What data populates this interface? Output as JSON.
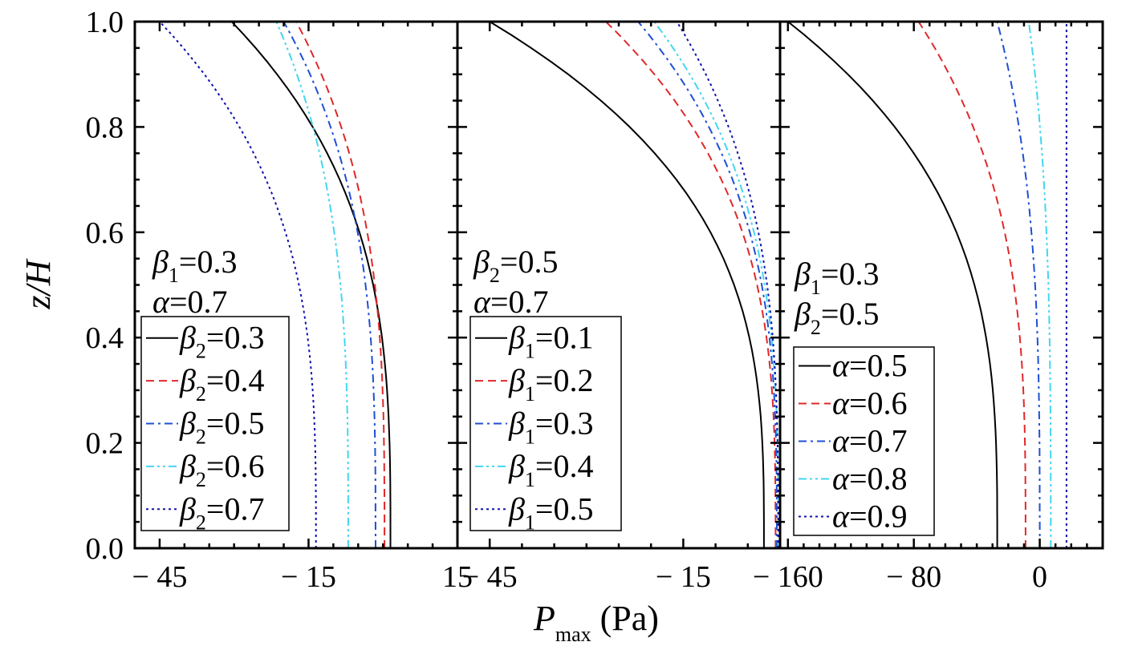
{
  "figure": {
    "ylabel_main": "z",
    "ylabel_rest": "/H",
    "xlabel_symbol": "P",
    "xlabel_sub": "max",
    "xlabel_unit": " (Pa)",
    "colors": [
      "#000000",
      "#e0282a",
      "#1f4fd6",
      "#44d6f0",
      "#1010b0"
    ],
    "dash_styles": [
      "solid",
      "dash",
      "dash-dot",
      "dash-dot-dot",
      "dot"
    ]
  },
  "chart_data": [
    {
      "type": "line",
      "orientation": "y-vs-x",
      "xlim": [
        -50,
        15
      ],
      "ylim": [
        0.0,
        1.0
      ],
      "xticks": [
        {
          "v": -45,
          "label": "− 45"
        },
        {
          "v": -15,
          "label": "− 15"
        },
        {
          "v": 15,
          "label": "15"
        }
      ],
      "yticks": [
        {
          "v": 0.0,
          "label": "0.0"
        },
        {
          "v": 0.2,
          "label": "0.2"
        },
        {
          "v": 0.4,
          "label": "0.4"
        },
        {
          "v": 0.6,
          "label": "0.6"
        },
        {
          "v": 0.8,
          "label": "0.8"
        },
        {
          "v": 1.0,
          "label": "1.0"
        }
      ],
      "annotation": [
        {
          "sym": "β",
          "sub": "1",
          "val": "=0.3"
        },
        {
          "sym": "α",
          "sub": "",
          "val": "=0.7"
        }
      ],
      "legend_sym": "β",
      "legend_sub": "2",
      "series": [
        {
          "name": "=0.3",
          "top": -30.5,
          "bottom": 1.5
        },
        {
          "name": "=0.4",
          "top": -17.5,
          "bottom": 0.3
        },
        {
          "name": "=0.5",
          "top": -20.0,
          "bottom": -1.5
        },
        {
          "name": "=0.6",
          "top": -21.5,
          "bottom": -7.0
        },
        {
          "name": "=0.7",
          "top": -45.0,
          "bottom": -13.5
        }
      ]
    },
    {
      "type": "line",
      "orientation": "y-vs-x",
      "xlim": [
        -50,
        0
      ],
      "ylim": [
        0.0,
        1.0
      ],
      "xticks": [
        {
          "v": -45,
          "label": "− 45"
        },
        {
          "v": -15,
          "label": "− 15"
        },
        {
          "v": 0,
          "label": ""
        }
      ],
      "yticks": [
        {
          "v": 0.0,
          "label": ""
        },
        {
          "v": 0.2,
          "label": ""
        },
        {
          "v": 0.4,
          "label": ""
        },
        {
          "v": 0.6,
          "label": ""
        },
        {
          "v": 0.8,
          "label": ""
        },
        {
          "v": 1.0,
          "label": ""
        }
      ],
      "annotation": [
        {
          "sym": "β",
          "sub": "2",
          "val": "=0.5"
        },
        {
          "sym": "α",
          "sub": "",
          "val": "=0.7"
        }
      ],
      "legend_sym": "β",
      "legend_sub": "1",
      "series": [
        {
          "name": "=0.1",
          "top": -45.0,
          "bottom": -2.5
        },
        {
          "name": "=0.2",
          "top": -27.0,
          "bottom": -0.7
        },
        {
          "name": "=0.3",
          "top": -22.0,
          "bottom": -0.5
        },
        {
          "name": "=0.4",
          "top": -19.5,
          "bottom": -0.3
        },
        {
          "name": "=0.5",
          "top": -16.0,
          "bottom": -0.3
        }
      ]
    },
    {
      "type": "line",
      "orientation": "y-vs-x",
      "xlim": [
        -165,
        40
      ],
      "ylim": [
        0.0,
        1.0
      ],
      "xticks": [
        {
          "v": -160,
          "label": "− 160"
        },
        {
          "v": -80,
          "label": "− 80"
        },
        {
          "v": 0,
          "label": "0"
        }
      ],
      "yticks": [
        {
          "v": 0.0,
          "label": ""
        },
        {
          "v": 0.2,
          "label": ""
        },
        {
          "v": 0.4,
          "label": ""
        },
        {
          "v": 0.6,
          "label": ""
        },
        {
          "v": 0.8,
          "label": ""
        },
        {
          "v": 1.0,
          "label": ""
        }
      ],
      "annotation": [
        {
          "sym": "β",
          "sub": "1",
          "val": "=0.3"
        },
        {
          "sym": "β",
          "sub": "2",
          "val": "=0.5"
        }
      ],
      "legend_sym": "α",
      "legend_sub": "",
      "series": [
        {
          "name": "=0.5",
          "top": -160.0,
          "bottom": -27.0
        },
        {
          "name": "=0.6",
          "top": -77.0,
          "bottom": -9.0
        },
        {
          "name": "=0.7",
          "top": -27.0,
          "bottom": 0.0
        },
        {
          "name": "=0.8",
          "top": -7.0,
          "bottom": 7.0
        },
        {
          "name": "=0.9",
          "top": 17.0,
          "bottom": 17.0
        }
      ]
    }
  ]
}
